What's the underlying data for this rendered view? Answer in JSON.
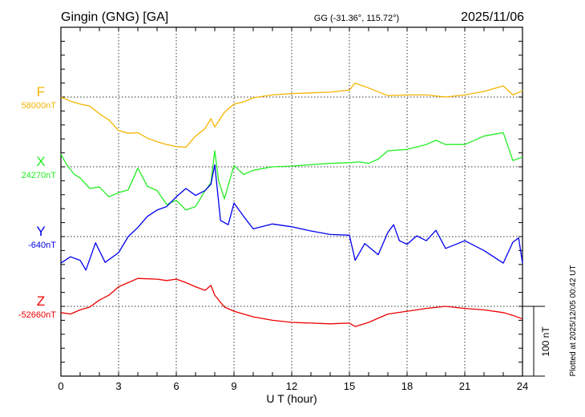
{
  "chart_data": {
    "type": "line",
    "title": "Gingin (GNG)  [GA]",
    "station_info": "GG (-31.36°, 115.72°)",
    "date": "2025/11/06",
    "xlabel": "U T (hour)",
    "xlim": [
      0,
      24
    ],
    "x_ticks": [
      "0",
      "3",
      "6",
      "9",
      "12",
      "15",
      "18",
      "21",
      "24"
    ],
    "scale_label": "100 nT",
    "plotted_note": "Plotted at 2025/12/05 00:42 UT",
    "grid": true,
    "series": [
      {
        "name": "F",
        "baseline_label": "58000nT",
        "color": "#f5b400",
        "x": [
          0,
          0.5,
          1,
          1.5,
          2,
          2.5,
          3,
          3.5,
          4,
          4.5,
          5,
          5.5,
          6,
          6.5,
          7,
          7.5,
          7.8,
          8,
          8.5,
          9,
          9.5,
          10,
          11,
          12,
          13,
          14,
          15,
          15.3,
          16,
          17,
          18,
          19,
          20,
          21,
          22,
          23,
          23.5,
          24
        ],
        "values": [
          0,
          -6,
          -10,
          -13,
          -24,
          -33,
          -48,
          -52,
          -51,
          -59,
          -64,
          -68,
          -71,
          -72,
          -56,
          -45,
          -31,
          -43,
          -22,
          -10,
          -7,
          -1,
          3,
          5,
          6,
          7,
          10,
          20,
          13,
          2,
          3,
          3,
          0,
          3,
          8,
          16,
          3,
          9
        ]
      },
      {
        "name": "X",
        "baseline_label": "24270nT",
        "color": "#22ee22",
        "x": [
          0,
          0.3,
          0.7,
          1,
          1.5,
          2,
          2.5,
          3,
          3.5,
          4,
          4.5,
          5,
          5.5,
          6,
          6.5,
          7,
          7.5,
          7.8,
          8,
          8.2,
          8.5,
          9,
          9.5,
          10,
          11,
          12,
          13,
          14,
          15,
          15.5,
          16,
          16.5,
          17,
          18,
          19,
          19.5,
          20,
          21,
          22,
          23,
          23.5,
          24
        ],
        "values": [
          18,
          3,
          -11,
          -16,
          -31,
          -29,
          -43,
          -37,
          -33,
          -2,
          -28,
          -34,
          -54,
          -48,
          -62,
          -57,
          -34,
          -23,
          23,
          -20,
          -46,
          2,
          -11,
          -5,
          0,
          1,
          3,
          5,
          6,
          7,
          5,
          11,
          23,
          25,
          32,
          38,
          32,
          32,
          44,
          49,
          9,
          14
        ]
      },
      {
        "name": "Y",
        "baseline_label": "-640nT",
        "color": "#0000ee",
        "x": [
          0,
          0.5,
          1,
          1.3,
          1.8,
          2.3,
          3,
          3.5,
          4,
          4.5,
          5,
          5.5,
          6,
          6.5,
          7,
          7.5,
          7.8,
          8,
          8.3,
          8.7,
          9,
          9.5,
          10,
          11,
          12,
          13,
          14,
          15,
          15.3,
          15.8,
          16.5,
          17,
          17.3,
          17.6,
          18,
          18.5,
          19,
          19.5,
          20,
          21,
          22,
          23,
          23.5,
          23.8,
          24
        ],
        "values": [
          -38,
          -29,
          -34,
          -48,
          -9,
          -37,
          -23,
          0,
          13,
          29,
          38,
          43,
          57,
          69,
          59,
          66,
          75,
          103,
          23,
          17,
          48,
          29,
          11,
          18,
          14,
          8,
          3,
          2,
          -34,
          -10,
          -26,
          6,
          17,
          -6,
          -11,
          1,
          -6,
          9,
          -17,
          -6,
          -20,
          -38,
          -8,
          -2,
          -38
        ]
      },
      {
        "name": "Z",
        "baseline_label": "-52660nT",
        "color": "#ee0000",
        "x": [
          0,
          0.5,
          1,
          1.5,
          2,
          2.5,
          3,
          3.5,
          4,
          5,
          5.5,
          6,
          6.5,
          7,
          7.5,
          7.8,
          8,
          8.5,
          9,
          10,
          11,
          12,
          13,
          14,
          15,
          15.3,
          16,
          17,
          18,
          19,
          20,
          21,
          22,
          23,
          23.5,
          24
        ],
        "values": [
          -9,
          -11,
          -5,
          -1,
          9,
          16,
          28,
          34,
          40,
          39,
          37,
          39,
          34,
          28,
          23,
          30,
          16,
          -1,
          -7,
          -15,
          -20,
          -23,
          -24,
          -25,
          -24,
          -29,
          -23,
          -11,
          -7,
          -3,
          0,
          -3,
          -5,
          -9,
          -13,
          -18
        ]
      }
    ]
  }
}
